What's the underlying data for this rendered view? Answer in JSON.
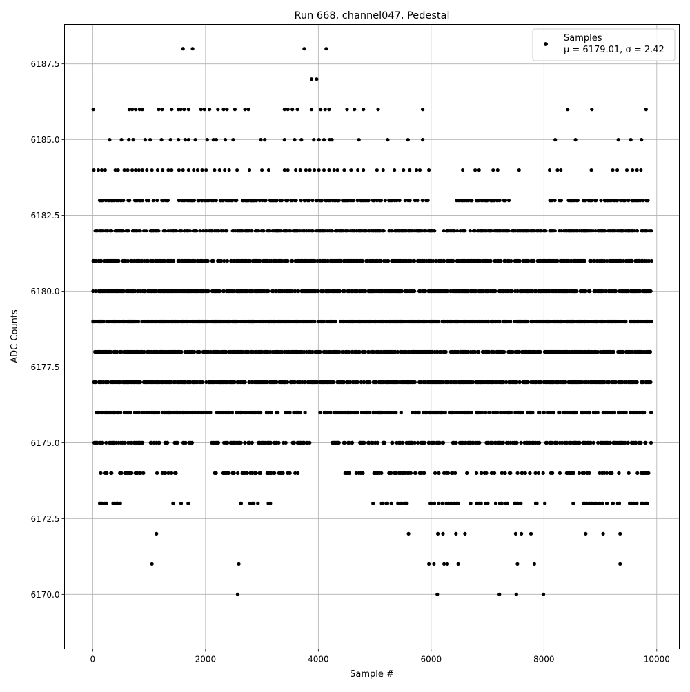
{
  "chart_data": {
    "type": "scatter",
    "title": "Run 668, channel047, Pedestal",
    "xlabel": "Sample #",
    "ylabel": "ADC Counts",
    "xlim": [
      -500,
      10400
    ],
    "ylim": [
      6168.2,
      6188.8
    ],
    "xticks": [
      0,
      2000,
      4000,
      6000,
      8000,
      10000
    ],
    "xtick_labels": [
      "0",
      "2000",
      "4000",
      "6000",
      "8000",
      "10000"
    ],
    "yticks": [
      6170.0,
      6172.5,
      6175.0,
      6177.5,
      6180.0,
      6182.5,
      6185.0,
      6187.5
    ],
    "ytick_labels": [
      "6170.0",
      "6172.5",
      "6175.0",
      "6177.5",
      "6180.0",
      "6182.5",
      "6185.0",
      "6187.5"
    ],
    "grid": true,
    "legend_position": "top-right",
    "series": [
      {
        "name": "Samples",
        "stats_label": "μ = 6179.01, σ = 2.42",
        "color": "#000000",
        "n_points": 9900,
        "points": [
          [
            1600,
            6188
          ],
          [
            1770,
            6188
          ],
          [
            3750,
            6188
          ],
          [
            4140,
            6188
          ],
          [
            3880,
            6187
          ],
          [
            3970,
            6187
          ],
          [
            10,
            6186
          ],
          [
            650,
            6186
          ],
          [
            700,
            6186
          ],
          [
            760,
            6186
          ],
          [
            830,
            6186
          ],
          [
            880,
            6186
          ],
          [
            1170,
            6186
          ],
          [
            1230,
            6186
          ],
          [
            1400,
            6186
          ],
          [
            1520,
            6186
          ],
          [
            1560,
            6186
          ],
          [
            1620,
            6186
          ],
          [
            1700,
            6186
          ],
          [
            1920,
            6186
          ],
          [
            1980,
            6186
          ],
          [
            2070,
            6186
          ],
          [
            2220,
            6186
          ],
          [
            2320,
            6186
          ],
          [
            2380,
            6186
          ],
          [
            2520,
            6186
          ],
          [
            2700,
            6186
          ],
          [
            2760,
            6186
          ],
          [
            3400,
            6186
          ],
          [
            3460,
            6186
          ],
          [
            3540,
            6186
          ],
          [
            3630,
            6186
          ],
          [
            3880,
            6186
          ],
          [
            4040,
            6186
          ],
          [
            4120,
            6186
          ],
          [
            4190,
            6186
          ],
          [
            4510,
            6186
          ],
          [
            4640,
            6186
          ],
          [
            4800,
            6186
          ],
          [
            5060,
            6186
          ],
          [
            5850,
            6186
          ],
          [
            8420,
            6186
          ],
          [
            8850,
            6186
          ],
          [
            9810,
            6186
          ],
          [
            300,
            6185
          ],
          [
            510,
            6185
          ],
          [
            640,
            6185
          ],
          [
            720,
            6185
          ],
          [
            930,
            6185
          ],
          [
            1020,
            6185
          ],
          [
            1220,
            6185
          ],
          [
            1380,
            6185
          ],
          [
            1520,
            6185
          ],
          [
            1640,
            6185
          ],
          [
            1700,
            6185
          ],
          [
            1820,
            6185
          ],
          [
            2030,
            6185
          ],
          [
            2140,
            6185
          ],
          [
            2190,
            6185
          ],
          [
            2350,
            6185
          ],
          [
            2490,
            6185
          ],
          [
            2980,
            6185
          ],
          [
            3050,
            6185
          ],
          [
            3400,
            6185
          ],
          [
            3580,
            6185
          ],
          [
            3700,
            6185
          ],
          [
            3920,
            6185
          ],
          [
            4010,
            6185
          ],
          [
            4100,
            6185
          ],
          [
            4200,
            6185
          ],
          [
            4240,
            6185
          ],
          [
            4720,
            6185
          ],
          [
            5230,
            6185
          ],
          [
            5590,
            6185
          ],
          [
            5850,
            6185
          ],
          [
            8200,
            6185
          ],
          [
            8560,
            6185
          ],
          [
            9320,
            6185
          ],
          [
            9540,
            6185
          ],
          [
            9730,
            6185
          ],
          [
            20,
            6184
          ],
          [
            100,
            6184
          ],
          [
            160,
            6184
          ],
          [
            220,
            6184
          ],
          [
            400,
            6184
          ],
          [
            450,
            6184
          ],
          [
            560,
            6184
          ],
          [
            620,
            6184
          ],
          [
            700,
            6184
          ],
          [
            760,
            6184
          ],
          [
            820,
            6184
          ],
          [
            880,
            6184
          ],
          [
            960,
            6184
          ],
          [
            1050,
            6184
          ],
          [
            1150,
            6184
          ],
          [
            1240,
            6184
          ],
          [
            1340,
            6184
          ],
          [
            1400,
            6184
          ],
          [
            1530,
            6184
          ],
          [
            1600,
            6184
          ],
          [
            1700,
            6184
          ],
          [
            1790,
            6184
          ],
          [
            1860,
            6184
          ],
          [
            1940,
            6184
          ],
          [
            2010,
            6184
          ],
          [
            2160,
            6184
          ],
          [
            2250,
            6184
          ],
          [
            2340,
            6184
          ],
          [
            2420,
            6184
          ],
          [
            2560,
            6184
          ],
          [
            2780,
            6184
          ],
          [
            3000,
            6184
          ],
          [
            3120,
            6184
          ],
          [
            3400,
            6184
          ],
          [
            3460,
            6184
          ],
          [
            3600,
            6184
          ],
          [
            3680,
            6184
          ],
          [
            3780,
            6184
          ],
          [
            3850,
            6184
          ],
          [
            3930,
            6184
          ],
          [
            4010,
            6184
          ],
          [
            4100,
            6184
          ],
          [
            4190,
            6184
          ],
          [
            4280,
            6184
          ],
          [
            4340,
            6184
          ],
          [
            4460,
            6184
          ],
          [
            4580,
            6184
          ],
          [
            4700,
            6184
          ],
          [
            4800,
            6184
          ],
          [
            5040,
            6184
          ],
          [
            5150,
            6184
          ],
          [
            5350,
            6184
          ],
          [
            5510,
            6184
          ],
          [
            5620,
            6184
          ],
          [
            5740,
            6184
          ],
          [
            5800,
            6184
          ],
          [
            5960,
            6184
          ],
          [
            6560,
            6184
          ],
          [
            6780,
            6184
          ],
          [
            6850,
            6184
          ],
          [
            7100,
            6184
          ],
          [
            7180,
            6184
          ],
          [
            7560,
            6184
          ],
          [
            8100,
            6184
          ],
          [
            8240,
            6184
          ],
          [
            8300,
            6184
          ],
          [
            8840,
            6184
          ],
          [
            9220,
            6184
          ],
          [
            9300,
            6184
          ],
          [
            9470,
            6184
          ],
          [
            9570,
            6184
          ],
          [
            9650,
            6184
          ],
          [
            9720,
            6184
          ],
          [
            6120,
            6172
          ],
          [
            6210,
            6172
          ],
          [
            6440,
            6172
          ],
          [
            6600,
            6172
          ],
          [
            7500,
            6172
          ],
          [
            7600,
            6172
          ],
          [
            7770,
            6172
          ],
          [
            8740,
            6172
          ],
          [
            9050,
            6172
          ],
          [
            9350,
            6172
          ],
          [
            1130,
            6172
          ],
          [
            5600,
            6172
          ],
          [
            1050,
            6171
          ],
          [
            2590,
            6171
          ],
          [
            5960,
            6171
          ],
          [
            6050,
            6171
          ],
          [
            6230,
            6171
          ],
          [
            6290,
            6171
          ],
          [
            6480,
            6171
          ],
          [
            7530,
            6171
          ],
          [
            7830,
            6171
          ],
          [
            9350,
            6171
          ],
          [
            2570,
            6170
          ],
          [
            6110,
            6170
          ],
          [
            7210,
            6170
          ],
          [
            7510,
            6170
          ],
          [
            7990,
            6170
          ]
        ],
        "row_density": [
          {
            "value": 6183,
            "coverage": [
              [
                0,
                5950
              ],
              [
                6450,
                7380
              ],
              [
                8080,
                9900
              ]
            ],
            "fill": 0.55
          },
          {
            "value": 6182,
            "coverage": [
              [
                0,
                6100
              ],
              [
                6200,
                9900
              ]
            ],
            "fill": 0.8
          },
          {
            "value": 6181,
            "coverage": [
              [
                0,
                9900
              ]
            ],
            "fill": 0.9
          },
          {
            "value": 6180,
            "coverage": [
              [
                0,
                9900
              ]
            ],
            "fill": 0.95
          },
          {
            "value": 6179,
            "coverage": [
              [
                0,
                9900
              ]
            ],
            "fill": 0.95
          },
          {
            "value": 6178,
            "coverage": [
              [
                0,
                9900
              ]
            ],
            "fill": 0.95
          },
          {
            "value": 6177,
            "coverage": [
              [
                0,
                9900
              ]
            ],
            "fill": 0.92
          },
          {
            "value": 6176,
            "coverage": [
              [
                60,
                3900
              ],
              [
                4000,
                9900
              ]
            ],
            "fill": 0.55
          },
          {
            "value": 6175,
            "coverage": [
              [
                0,
                1800
              ],
              [
                2100,
                3900
              ],
              [
                4230,
                9900
              ]
            ],
            "fill": 0.6
          },
          {
            "value": 6174,
            "coverage": [
              [
                60,
                1500
              ],
              [
                2150,
                3650
              ],
              [
                4460,
                9900
              ]
            ],
            "fill": 0.35
          },
          {
            "value": 6173,
            "coverage": [
              [
                100,
                500
              ],
              [
                1420,
                1780
              ],
              [
                2600,
                3200
              ],
              [
                4930,
                5590
              ],
              [
                5950,
                8020
              ],
              [
                8400,
                9850
              ]
            ],
            "fill": 0.3
          }
        ]
      }
    ]
  }
}
